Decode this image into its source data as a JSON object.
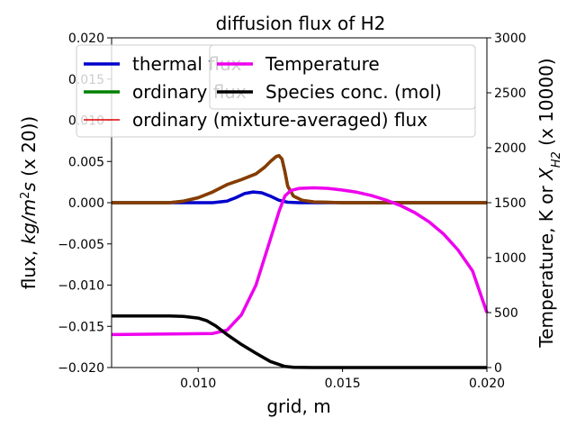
{
  "chart_data": {
    "type": "line",
    "title": "diffusion flux of H2",
    "xlabel": "grid, m",
    "ylabel_left_parts": [
      "flux, ",
      "kg/m",
      "2",
      "s",
      " (x 20))"
    ],
    "ylabel_right_parts": [
      "Temperature, K or ",
      "X",
      "H2",
      " (x 10000)"
    ],
    "xlim": [
      0.007,
      0.02
    ],
    "ylim_left": [
      -0.02,
      0.02
    ],
    "ylim_right": [
      0,
      3000
    ],
    "x_ticks": [
      0.01,
      0.015,
      0.02
    ],
    "x_tick_labels": [
      "0.010",
      "0.015",
      "0.020"
    ],
    "y_left_ticks": [
      -0.02,
      -0.015,
      -0.01,
      -0.005,
      0.0,
      0.005,
      0.01,
      0.015,
      0.02
    ],
    "y_left_tick_labels": [
      "−0.020",
      "−0.015",
      "−0.010",
      "−0.005",
      "0.000",
      "0.005",
      "0.010",
      "0.015",
      "0.020"
    ],
    "y_right_ticks": [
      0,
      500,
      1000,
      1500,
      2000,
      2500,
      3000
    ],
    "y_right_tick_labels": [
      "0",
      "500",
      "1000",
      "1500",
      "2000",
      "2500",
      "3000"
    ],
    "grid": false,
    "legend_left_placement": "upper-left",
    "legend_right_placement": "upper-right",
    "series_left": [
      {
        "name": "thermal flux",
        "color": "#0000cc",
        "x": [
          0.007,
          0.0105,
          0.011,
          0.0113,
          0.0116,
          0.0119,
          0.0122,
          0.0125,
          0.0128,
          0.0131,
          0.0135,
          0.02
        ],
        "y": [
          0.0,
          0.0,
          0.0002,
          0.0006,
          0.0011,
          0.0013,
          0.0012,
          0.0008,
          0.0003,
          5e-05,
          0.0,
          0.0
        ]
      },
      {
        "name": "ordinary flux",
        "color": "#008000",
        "x": [
          0.007,
          0.009,
          0.0095,
          0.01,
          0.0105,
          0.011,
          0.0115,
          0.012,
          0.0123,
          0.0125,
          0.0127,
          0.0128,
          0.0129,
          0.013,
          0.0131,
          0.0133,
          0.0136,
          0.014,
          0.015,
          0.02
        ],
        "y": [
          0.0,
          0.0,
          0.0002,
          0.0006,
          0.0013,
          0.0022,
          0.0028,
          0.0035,
          0.0043,
          0.005,
          0.0056,
          0.0057,
          0.0053,
          0.0038,
          0.002,
          0.0008,
          0.0003,
          0.0001,
          0.0,
          0.0
        ]
      },
      {
        "name": "ordinary (mixture-averaged) flux",
        "color": "#e00000",
        "x": [
          0.007,
          0.009,
          0.0095,
          0.01,
          0.0105,
          0.011,
          0.0115,
          0.012,
          0.0123,
          0.0125,
          0.0127,
          0.0128,
          0.0129,
          0.013,
          0.0131,
          0.0133,
          0.0136,
          0.014,
          0.015,
          0.02
        ],
        "y": [
          0.0,
          0.0,
          0.0002,
          0.0006,
          0.0013,
          0.0022,
          0.0028,
          0.0035,
          0.0043,
          0.005,
          0.0056,
          0.0057,
          0.0053,
          0.0038,
          0.002,
          0.0008,
          0.0003,
          0.0001,
          0.0,
          0.0
        ]
      }
    ],
    "series_right": [
      {
        "name": "Temperature",
        "color": "#ee00ee",
        "x": [
          0.007,
          0.0105,
          0.011,
          0.0115,
          0.012,
          0.0123,
          0.0126,
          0.0128,
          0.013,
          0.0132,
          0.0135,
          0.014,
          0.0145,
          0.015,
          0.0155,
          0.016,
          0.0165,
          0.017,
          0.0175,
          0.018,
          0.0185,
          0.019,
          0.0195,
          0.02
        ],
        "y": [
          300,
          310,
          340,
          480,
          750,
          1000,
          1250,
          1420,
          1560,
          1610,
          1630,
          1635,
          1630,
          1615,
          1595,
          1565,
          1525,
          1475,
          1410,
          1325,
          1215,
          1070,
          880,
          500
        ]
      },
      {
        "name": "Species conc. (mol)",
        "color": "#000000",
        "x": [
          0.007,
          0.009,
          0.0095,
          0.01,
          0.0103,
          0.0106,
          0.011,
          0.0115,
          0.012,
          0.0125,
          0.013,
          0.0133,
          0.014,
          0.02
        ],
        "y": [
          470,
          470,
          465,
          450,
          425,
          380,
          300,
          210,
          130,
          55,
          10,
          2,
          0,
          0
        ]
      }
    ]
  }
}
